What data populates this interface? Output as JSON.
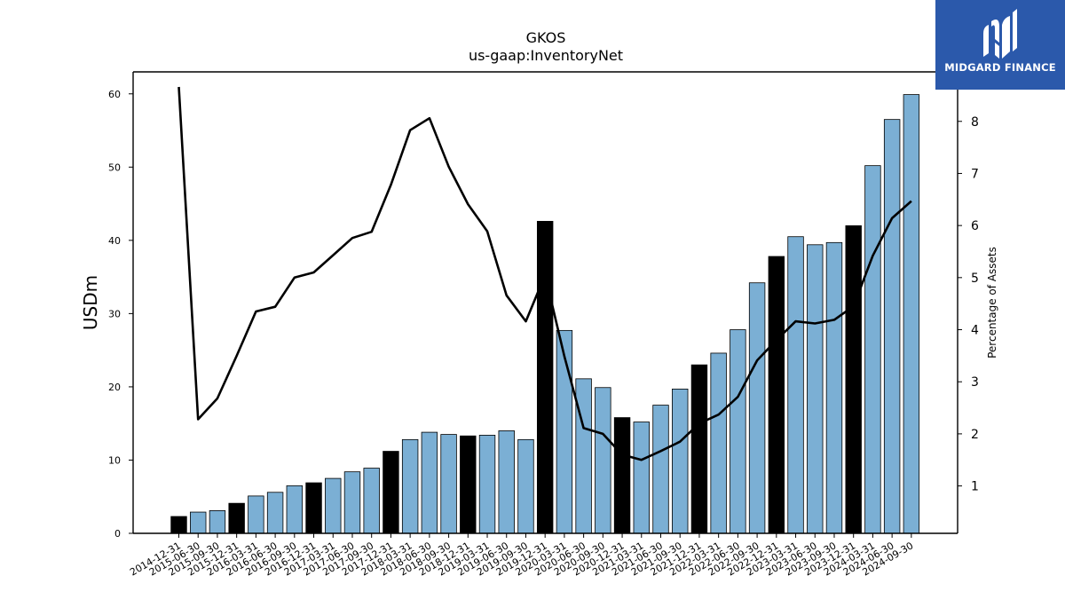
{
  "brand": {
    "name": "MIDGARD FINANCE"
  },
  "chart_data": {
    "type": "bar",
    "title": "GKOS",
    "subtitle": "us-gaap:InventoryNet",
    "ylabel": "USDm",
    "y2label": "Percentage of Assets",
    "ylim": [
      0,
      63
    ],
    "y2lim": [
      0.09,
      8.95
    ],
    "yticks": [
      0,
      10,
      20,
      30,
      40,
      50,
      60
    ],
    "y2ticks": [
      1,
      2,
      3,
      4,
      5,
      6,
      7,
      8
    ],
    "colors": {
      "bar": "#7bafd4",
      "bar_highlight": "#000000",
      "line": "#000000"
    },
    "categories": [
      "2014-12-31",
      "2015-06-30",
      "2015-09-30",
      "2015-12-31",
      "2016-03-31",
      "2016-06-30",
      "2016-09-30",
      "2016-12-31",
      "2017-03-31",
      "2017-06-30",
      "2017-09-30",
      "2017-12-31",
      "2018-03-31",
      "2018-06-30",
      "2018-09-30",
      "2018-12-31",
      "2019-03-31",
      "2019-06-30",
      "2019-09-30",
      "2019-12-31",
      "2020-03-31",
      "2020-06-30",
      "2020-09-30",
      "2020-12-31",
      "2021-03-31",
      "2021-06-30",
      "2021-09-30",
      "2021-12-31",
      "2022-03-31",
      "2022-06-30",
      "2022-09-30",
      "2022-12-31",
      "2023-03-31",
      "2023-06-30",
      "2023-09-30",
      "2023-12-31",
      "2024-03-31",
      "2024-06-30",
      "2024-09-30"
    ],
    "series": [
      {
        "type": "bar",
        "values": [
          2.3,
          2.9,
          3.1,
          4.1,
          5.1,
          5.6,
          6.5,
          6.9,
          7.5,
          8.4,
          8.9,
          11.2,
          12.8,
          13.8,
          13.5,
          13.3,
          13.4,
          14.0,
          12.8,
          42.6,
          27.7,
          21.1,
          19.9,
          15.8,
          15.2,
          17.5,
          19.7,
          23.0,
          24.6,
          27.8,
          34.2,
          37.8,
          40.5,
          39.4,
          39.7,
          42.0,
          50.2,
          56.5,
          59.9
        ],
        "highlight_year_end": [
          true,
          false,
          false,
          true,
          false,
          false,
          false,
          true,
          false,
          false,
          false,
          true,
          false,
          false,
          false,
          true,
          false,
          false,
          false,
          true,
          false,
          false,
          false,
          true,
          false,
          false,
          false,
          true,
          false,
          false,
          false,
          true,
          false,
          false,
          false,
          true,
          false,
          false,
          false
        ]
      },
      {
        "type": "line",
        "axis": "right",
        "values": [
          8.66,
          2.28,
          2.68,
          3.5,
          4.35,
          4.44,
          5.0,
          5.1,
          5.43,
          5.76,
          5.88,
          6.78,
          7.83,
          8.06,
          7.13,
          6.41,
          5.89,
          4.66,
          4.16,
          5.05,
          3.49,
          2.11,
          2.0,
          1.6,
          1.5,
          1.67,
          1.85,
          2.2,
          2.37,
          2.71,
          3.41,
          3.8,
          4.16,
          4.12,
          4.19,
          4.45,
          5.42,
          6.14,
          6.47
        ]
      }
    ]
  }
}
